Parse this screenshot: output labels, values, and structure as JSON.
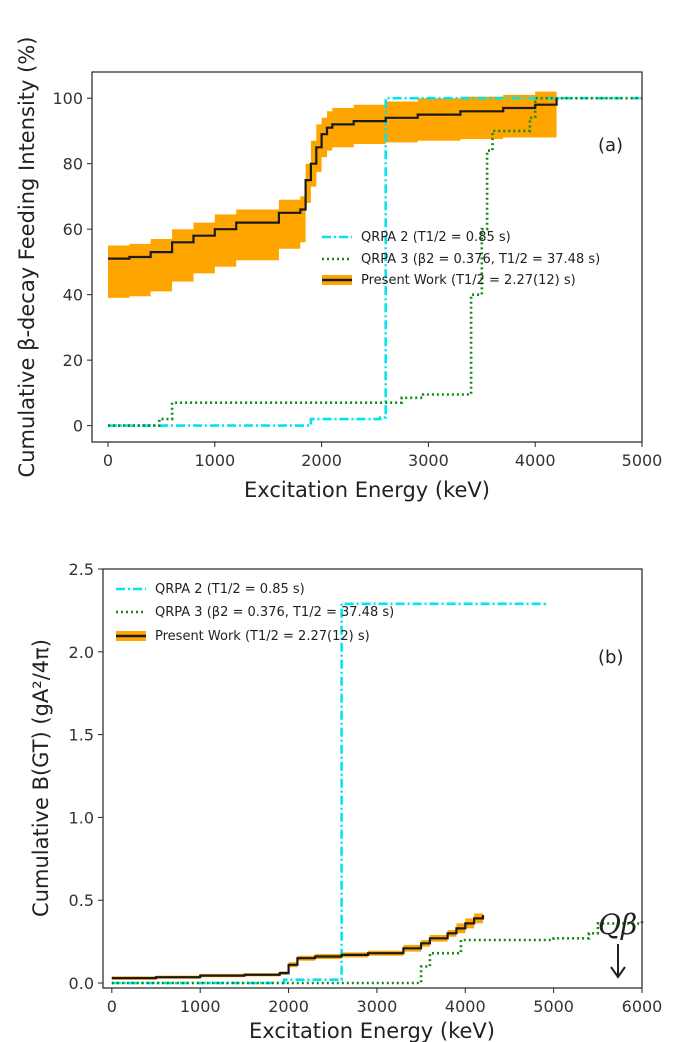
{
  "chart_data": [
    {
      "type": "line",
      "panel_label": "(a)",
      "xlabel": "Excitation Energy (keV)",
      "ylabel": "Cumulative β-decay Feeding Intensity (%)",
      "xlim": [
        -150,
        5000
      ],
      "ylim": [
        -5,
        108
      ],
      "xticks": [
        0,
        1000,
        2000,
        3000,
        4000,
        5000
      ],
      "yticks": [
        0,
        20,
        40,
        60,
        80,
        100
      ],
      "xtick_labels": [
        "0",
        "1000",
        "2000",
        "3000",
        "4000",
        "5000"
      ],
      "ytick_labels": [
        "0",
        "20",
        "40",
        "60",
        "80",
        "100"
      ],
      "grid": false,
      "legend_position": "center-right",
      "series": [
        {
          "name": "QRPA 2 (T1/2 = 0.85 s)",
          "color": "#00e5ee",
          "style": "dashdot",
          "x": [
            0,
            1850,
            1900,
            2550,
            2600,
            5000
          ],
          "y": [
            0,
            0,
            2,
            2.5,
            100,
            100
          ]
        },
        {
          "name": "QRPA 3 (β2 = 0.376, T1/2 = 37.48 s)",
          "color": "#138a13",
          "style": "dotted",
          "x": [
            0,
            400,
            480,
            600,
            2700,
            2750,
            2900,
            2950,
            3350,
            3400,
            3500,
            3550,
            3600,
            3900,
            3950,
            4000,
            5000
          ],
          "y": [
            0,
            0,
            2,
            7,
            7,
            8.5,
            8.5,
            9.5,
            9.5,
            40,
            60,
            84,
            90,
            90,
            94,
            100,
            100
          ]
        },
        {
          "name": "Present Work (T1/2 = 2.27(12) s)",
          "color": "#1a1a1a",
          "band_color": "#ffa500",
          "style": "solid",
          "x": [
            0,
            200,
            400,
            600,
            800,
            1000,
            1200,
            1600,
            1800,
            1850,
            1900,
            1950,
            2000,
            2050,
            2100,
            2300,
            2600,
            2900,
            3300,
            3700,
            4000,
            4200
          ],
          "y": [
            51,
            51.5,
            53,
            56,
            58,
            60,
            62,
            65,
            66,
            75,
            80,
            85,
            89,
            91,
            92,
            93,
            94,
            95,
            96,
            97,
            98,
            100
          ],
          "lower": [
            39,
            39.5,
            41,
            44,
            46.5,
            48.5,
            50.5,
            54,
            56,
            68,
            73,
            77.5,
            82,
            84,
            85,
            86,
            86.5,
            87,
            87.5,
            88,
            88,
            88
          ],
          "upper": [
            55,
            55.5,
            57,
            60,
            62,
            64.5,
            66,
            69,
            70,
            80,
            87,
            92,
            94,
            96,
            97,
            98,
            99,
            100,
            100.5,
            101,
            102,
            103
          ]
        }
      ]
    },
    {
      "type": "line",
      "panel_label": "(b)",
      "xlabel": "Excitation Energy (keV)",
      "ylabel": "Cumulative B(GT) (gA²/4π)",
      "xlim": [
        -100,
        6000
      ],
      "ylim": [
        -0.03,
        2.5
      ],
      "xticks": [
        0,
        1000,
        2000,
        3000,
        4000,
        5000,
        6000
      ],
      "yticks": [
        0.0,
        0.5,
        1.0,
        1.5,
        2.0,
        2.5
      ],
      "xtick_labels": [
        "0",
        "1000",
        "2000",
        "3000",
        "4000",
        "5000",
        "6000"
      ],
      "ytick_labels": [
        "0.0",
        "0.5",
        "1.0",
        "1.5",
        "2.0",
        "2.5"
      ],
      "grid": false,
      "legend_position": "top-left",
      "annotation": {
        "text": "Qβ",
        "x": 5750,
        "arrow_to_y": 0.03
      },
      "series": [
        {
          "name": "QRPA 2 (T1/2 = 0.85 s)",
          "color": "#00e5ee",
          "style": "dashdot",
          "x": [
            0,
            1900,
            1950,
            2550,
            2600,
            4900
          ],
          "y": [
            0,
            0,
            0.02,
            0.02,
            2.29,
            2.3
          ]
        },
        {
          "name": "QRPA 3 (β2 = 0.376, T1/2 = 37.48 s)",
          "color": "#138a13",
          "style": "dotted",
          "x": [
            0,
            3400,
            3500,
            3600,
            3900,
            3950,
            4400,
            5000,
            5400,
            5500,
            6000
          ],
          "y": [
            0,
            0,
            0.1,
            0.18,
            0.18,
            0.26,
            0.26,
            0.27,
            0.3,
            0.36,
            0.39
          ]
        },
        {
          "name": "Present Work (T1/2 = 2.27(12) s)",
          "color": "#1a1a1a",
          "band_color": "#ffa500",
          "style": "solid",
          "x": [
            0,
            500,
            1000,
            1500,
            1900,
            2000,
            2100,
            2300,
            2600,
            2900,
            3300,
            3500,
            3600,
            3800,
            3900,
            4000,
            4100,
            4200
          ],
          "y": [
            0.03,
            0.035,
            0.045,
            0.05,
            0.06,
            0.11,
            0.15,
            0.16,
            0.17,
            0.18,
            0.21,
            0.24,
            0.27,
            0.3,
            0.33,
            0.36,
            0.39,
            0.41
          ],
          "lower": [
            0.02,
            0.025,
            0.035,
            0.04,
            0.05,
            0.095,
            0.135,
            0.145,
            0.155,
            0.165,
            0.19,
            0.22,
            0.25,
            0.28,
            0.3,
            0.33,
            0.36,
            0.38
          ],
          "upper": [
            0.04,
            0.045,
            0.055,
            0.06,
            0.07,
            0.125,
            0.165,
            0.175,
            0.185,
            0.195,
            0.23,
            0.26,
            0.29,
            0.32,
            0.36,
            0.39,
            0.42,
            0.44
          ]
        }
      ]
    }
  ]
}
